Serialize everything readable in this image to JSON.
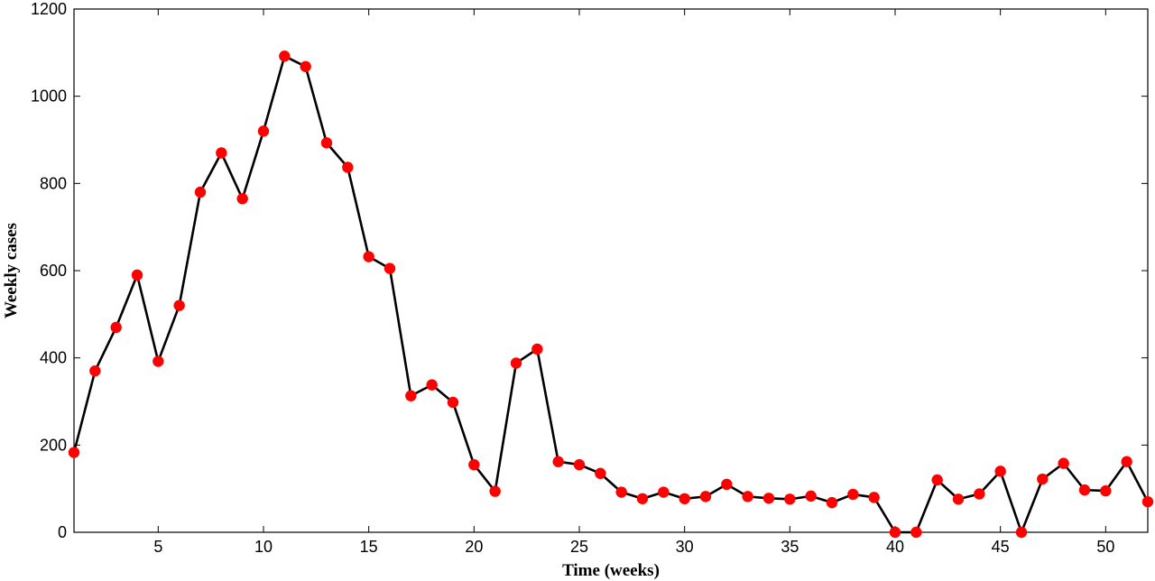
{
  "chart_data": {
    "type": "line",
    "xlabel": "Time (weeks)",
    "ylabel": "Weekly cases",
    "xlim": [
      1,
      52
    ],
    "ylim": [
      0,
      1200
    ],
    "xticks": [
      5,
      10,
      15,
      20,
      25,
      30,
      35,
      40,
      45,
      50
    ],
    "yticks": [
      0,
      200,
      400,
      600,
      800,
      1000,
      1200
    ],
    "grid": false,
    "line_color": "#000000",
    "marker_color": "#ff0000",
    "x": [
      1,
      2,
      3,
      4,
      5,
      6,
      7,
      8,
      9,
      10,
      11,
      12,
      13,
      14,
      15,
      16,
      17,
      18,
      19,
      20,
      21,
      22,
      23,
      24,
      25,
      26,
      27,
      28,
      29,
      30,
      31,
      32,
      33,
      34,
      35,
      36,
      37,
      38,
      39,
      40,
      41,
      42,
      43,
      44,
      45,
      46,
      47,
      48,
      49,
      50,
      51,
      52
    ],
    "values": [
      183,
      370,
      470,
      590,
      392,
      520,
      780,
      870,
      765,
      920,
      1092,
      1068,
      893,
      837,
      632,
      605,
      313,
      338,
      298,
      155,
      94,
      388,
      420,
      162,
      155,
      135,
      92,
      77,
      92,
      77,
      82,
      110,
      82,
      78,
      76,
      83,
      68,
      87,
      80,
      0,
      0,
      120,
      76,
      88,
      140,
      0,
      122,
      158,
      97,
      95,
      162,
      70
    ]
  }
}
